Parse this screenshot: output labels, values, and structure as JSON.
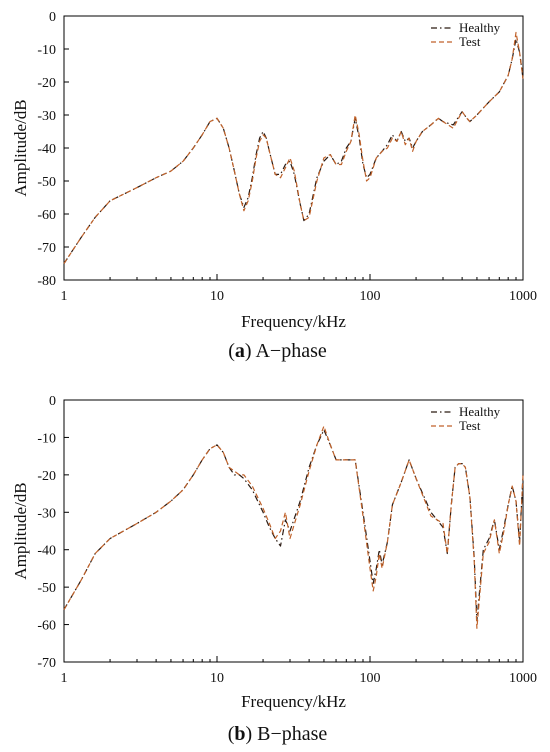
{
  "chart_data": [
    {
      "type": "line",
      "caption_letter": "a",
      "caption_text": "A−phase",
      "xlabel": "Frequency/kHz",
      "ylabel": "Amplitude/dB",
      "x_scale": "log",
      "xlim": [
        1,
        1000
      ],
      "ylim": [
        -80,
        0
      ],
      "x_ticks": [
        1,
        10,
        100,
        1000
      ],
      "y_ticks": [
        0,
        -10,
        -20,
        -30,
        -40,
        -50,
        -60,
        -70,
        -80
      ],
      "legend_position": "top-right",
      "colors": {
        "Healthy": "#2a1a12",
        "Test": "#c0622a"
      },
      "series": [
        {
          "name": "Healthy",
          "style": "dash-dot",
          "x": [
            1,
            1.3,
            1.6,
            2,
            3,
            4,
            5,
            6,
            7,
            8,
            9,
            10,
            11,
            12,
            13,
            14,
            15,
            16,
            17,
            18,
            19,
            20,
            21,
            22,
            24,
            26,
            28,
            30,
            32,
            35,
            37,
            40,
            45,
            50,
            55,
            60,
            65,
            70,
            75,
            80,
            85,
            90,
            95,
            100,
            110,
            120,
            130,
            140,
            150,
            160,
            170,
            180,
            190,
            200,
            220,
            250,
            280,
            300,
            350,
            400,
            430,
            450,
            500,
            600,
            700,
            800,
            850,
            900,
            950,
            1000
          ],
          "y": [
            -75,
            -67,
            -61,
            -56,
            -52,
            -49,
            -47,
            -44,
            -40,
            -36,
            -32,
            -31,
            -34,
            -40,
            -47,
            -54,
            -58,
            -55,
            -49,
            -42,
            -37,
            -35,
            -37,
            -41,
            -48,
            -48,
            -45,
            -44,
            -48,
            -57,
            -62,
            -60,
            -49,
            -44,
            -42,
            -45,
            -44,
            -40,
            -38,
            -31,
            -37,
            -45,
            -49,
            -48,
            -43,
            -41,
            -39,
            -36,
            -38,
            -35,
            -38,
            -37,
            -40,
            -38,
            -35,
            -33,
            -31,
            -32,
            -33,
            -29,
            -31,
            -32,
            -30,
            -26,
            -23,
            -18,
            -13,
            -7,
            -11,
            -19
          ]
        },
        {
          "name": "Test",
          "style": "dash",
          "x": [
            1,
            1.3,
            1.6,
            2,
            3,
            4,
            5,
            6,
            7,
            8,
            9,
            10,
            11,
            12,
            13,
            14,
            15,
            16,
            17,
            18,
            19,
            20,
            21,
            22,
            24,
            26,
            28,
            30,
            32,
            35,
            37,
            40,
            45,
            50,
            55,
            60,
            65,
            70,
            75,
            80,
            85,
            90,
            95,
            100,
            110,
            120,
            130,
            140,
            150,
            160,
            170,
            180,
            190,
            200,
            220,
            250,
            280,
            300,
            350,
            400,
            430,
            450,
            500,
            600,
            700,
            800,
            850,
            900,
            950,
            1000
          ],
          "y": [
            -75,
            -67,
            -61,
            -56,
            -52,
            -49,
            -47,
            -44,
            -40,
            -36,
            -32,
            -31,
            -34,
            -40,
            -47,
            -54,
            -59,
            -56,
            -50,
            -43,
            -38,
            -36,
            -37,
            -41,
            -48,
            -49,
            -46,
            -43,
            -47,
            -57,
            -62,
            -61,
            -50,
            -43,
            -42,
            -45,
            -45,
            -41,
            -38,
            -30,
            -36,
            -44,
            -50,
            -49,
            -43,
            -41,
            -40,
            -37,
            -38,
            -35,
            -39,
            -37,
            -41,
            -38,
            -35,
            -33,
            -31,
            -32,
            -34,
            -29,
            -31,
            -32,
            -30,
            -26,
            -23,
            -18,
            -13,
            -5,
            -11,
            -19
          ]
        }
      ]
    },
    {
      "type": "line",
      "caption_letter": "b",
      "caption_text": "B−phase",
      "xlabel": "Frequency/kHz",
      "ylabel": "Amplitude/dB",
      "x_scale": "log",
      "xlim": [
        1,
        1000
      ],
      "ylim": [
        -70,
        0
      ],
      "x_ticks": [
        1,
        10,
        100,
        1000
      ],
      "y_ticks": [
        0,
        -10,
        -20,
        -30,
        -40,
        -50,
        -60,
        -70
      ],
      "legend_position": "top-right",
      "colors": {
        "Healthy": "#2a1a12",
        "Test": "#c0622a"
      },
      "series": [
        {
          "name": "Healthy",
          "style": "dash-dot",
          "x": [
            1,
            1.3,
            1.6,
            2,
            3,
            4,
            5,
            6,
            7,
            8,
            9,
            10,
            11,
            12,
            13,
            14,
            15,
            17,
            20,
            22,
            24,
            26,
            28,
            30,
            35,
            40,
            45,
            50,
            55,
            60,
            65,
            70,
            75,
            80,
            90,
            100,
            105,
            110,
            115,
            120,
            130,
            140,
            160,
            180,
            200,
            250,
            300,
            320,
            340,
            360,
            380,
            400,
            420,
            450,
            480,
            500,
            550,
            600,
            650,
            700,
            750,
            800,
            850,
            900,
            950,
            1000
          ],
          "y": [
            -56,
            -48,
            -41,
            -37,
            -33,
            -30,
            -27,
            -24,
            -20,
            -16,
            -13,
            -12,
            -14,
            -18,
            -20,
            -20,
            -21,
            -24,
            -30,
            -34,
            -37,
            -39,
            -32,
            -35,
            -27,
            -18,
            -12,
            -8,
            -12,
            -16,
            -16,
            -16,
            -16,
            -16,
            -30,
            -43,
            -49,
            -45,
            -40,
            -44,
            -38,
            -28,
            -22,
            -16,
            -21,
            -30,
            -34,
            -41,
            -28,
            -18,
            -17,
            -17,
            -18,
            -26,
            -42,
            -59,
            -40,
            -37,
            -32,
            -40,
            -34,
            -28,
            -23,
            -27,
            -38,
            -20
          ]
        },
        {
          "name": "Test",
          "style": "dash",
          "x": [
            1,
            1.3,
            1.6,
            2,
            3,
            4,
            5,
            6,
            7,
            8,
            9,
            10,
            11,
            12,
            13,
            14,
            15,
            17,
            20,
            22,
            24,
            26,
            28,
            30,
            35,
            40,
            45,
            50,
            55,
            60,
            65,
            70,
            75,
            80,
            90,
            100,
            105,
            110,
            115,
            120,
            130,
            140,
            160,
            180,
            200,
            250,
            300,
            320,
            340,
            360,
            380,
            400,
            420,
            450,
            480,
            500,
            550,
            600,
            650,
            700,
            750,
            800,
            850,
            900,
            950,
            1000
          ],
          "y": [
            -56,
            -48,
            -41,
            -37,
            -33,
            -30,
            -27,
            -24,
            -20,
            -16,
            -13,
            -12,
            -14,
            -18,
            -19,
            -20,
            -20,
            -23,
            -29,
            -33,
            -37,
            -35,
            -30,
            -37,
            -28,
            -19,
            -12,
            -7,
            -12,
            -16,
            -16,
            -16,
            -16,
            -16,
            -31,
            -45,
            -51,
            -47,
            -41,
            -45,
            -38,
            -28,
            -22,
            -16,
            -21,
            -31,
            -33,
            -41,
            -28,
            -18,
            -17,
            -17,
            -18,
            -26,
            -43,
            -61,
            -41,
            -38,
            -32,
            -41,
            -35,
            -28,
            -23,
            -27,
            -39,
            -20
          ]
        }
      ]
    }
  ]
}
